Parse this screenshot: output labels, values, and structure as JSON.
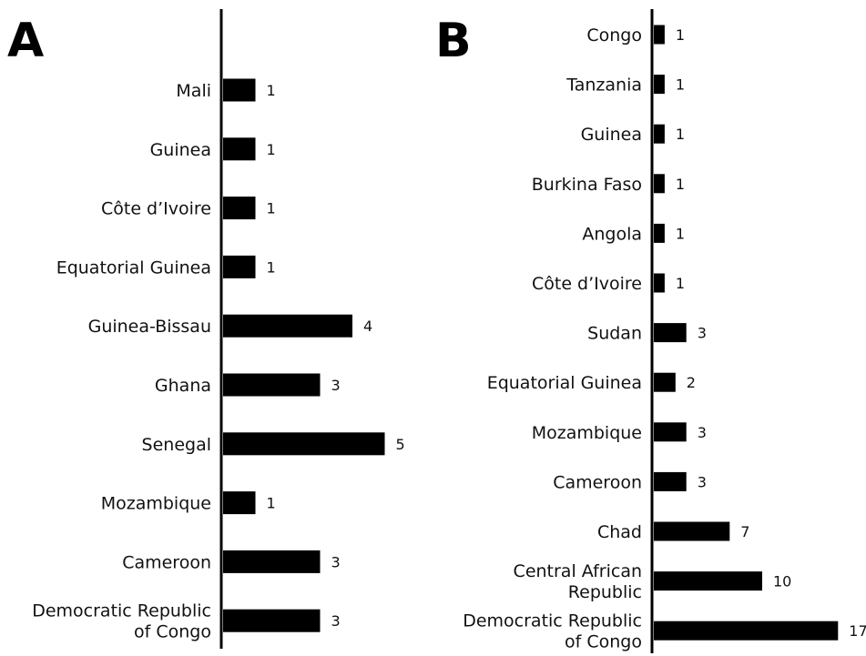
{
  "chart_data": [
    {
      "panel": "A",
      "type": "bar",
      "orientation": "horizontal",
      "categories": [
        "Mali",
        "Guinea",
        "Côte d’Ivoire",
        "Equatorial Guinea",
        "Guinea-Bissau",
        "Ghana",
        "Senegal",
        "Mozambique",
        "Cameroon",
        "Democratic Republic of Congo"
      ],
      "category_lines": [
        [
          "Mali"
        ],
        [
          "Guinea"
        ],
        [
          "Côte d’Ivoire"
        ],
        [
          "Equatorial Guinea"
        ],
        [
          "Guinea-Bissau"
        ],
        [
          "Ghana"
        ],
        [
          "Senegal"
        ],
        [
          "Mozambique"
        ],
        [
          "Cameroon"
        ],
        [
          "Democratic Republic",
          "of Congo"
        ]
      ],
      "values": [
        1,
        1,
        1,
        1,
        4,
        3,
        5,
        1,
        3,
        3
      ],
      "title": "",
      "xlabel": "",
      "ylabel": "",
      "grid": false,
      "legend": "none",
      "bar_color": "#000000"
    },
    {
      "panel": "B",
      "type": "bar",
      "orientation": "horizontal",
      "categories": [
        "Congo",
        "Tanzania",
        "Guinea",
        "Burkina Faso",
        "Angola",
        "Côte d’Ivoire",
        "Sudan",
        "Equatorial Guinea",
        "Mozambique",
        "Cameroon",
        "Chad",
        "Central African Republic",
        "Democratic Republic of Congo"
      ],
      "category_lines": [
        [
          "Congo"
        ],
        [
          "Tanzania"
        ],
        [
          "Guinea"
        ],
        [
          "Burkina Faso"
        ],
        [
          "Angola"
        ],
        [
          "Côte d’Ivoire"
        ],
        [
          "Sudan"
        ],
        [
          "Equatorial Guinea"
        ],
        [
          "Mozambique"
        ],
        [
          "Cameroon"
        ],
        [
          "Chad"
        ],
        [
          "Central African",
          "Republic"
        ],
        [
          "Democratic Republic",
          "of Congo"
        ]
      ],
      "values": [
        1,
        1,
        1,
        1,
        1,
        1,
        3,
        2,
        3,
        3,
        7,
        10,
        17
      ],
      "title": "",
      "xlabel": "",
      "ylabel": "",
      "grid": false,
      "legend": "none",
      "bar_color": "#000000"
    }
  ]
}
